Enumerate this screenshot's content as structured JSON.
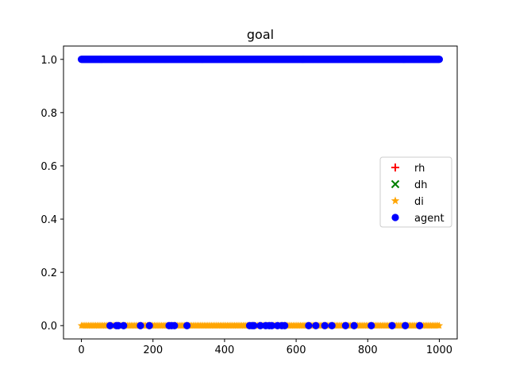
{
  "chart_data": {
    "type": "scatter",
    "title": "goal",
    "xlabel": "",
    "ylabel": "",
    "xlim": [
      -50,
      1050
    ],
    "ylim": [
      -0.05,
      1.05
    ],
    "xticks": [
      0,
      200,
      400,
      600,
      800,
      1000
    ],
    "yticks": [
      0.0,
      0.2,
      0.4,
      0.6,
      0.8,
      1.0
    ],
    "xtick_labels": [
      "0",
      "200",
      "400",
      "600",
      "800",
      "1000"
    ],
    "ytick_labels": [
      "0.0",
      "0.2",
      "0.4",
      "0.6",
      "0.8",
      "1.0"
    ],
    "grid": false,
    "legend_position": "center-right",
    "series": [
      {
        "name": "rh",
        "marker": "plus",
        "color": "#ff0000",
        "x": [],
        "y": []
      },
      {
        "name": "dh",
        "marker": "x",
        "color": "#008000",
        "x": [],
        "y": []
      },
      {
        "name": "di",
        "marker": "star",
        "color": "#ffa500",
        "description_x_range": [
          0,
          1000
        ],
        "y_constant": 0.0
      },
      {
        "name": "agent",
        "marker": "circle",
        "color": "#0000ff",
        "upper_x_range": [
          0,
          1000
        ],
        "upper_y": 1.0,
        "lower_x": [
          80,
          98,
          103,
          118,
          165,
          190,
          245,
          252,
          260,
          295,
          470,
          477,
          482,
          500,
          515,
          525,
          532,
          548,
          560,
          568,
          635,
          655,
          680,
          700,
          738,
          762,
          810,
          868,
          905,
          945
        ],
        "lower_y": 0.0
      }
    ]
  }
}
